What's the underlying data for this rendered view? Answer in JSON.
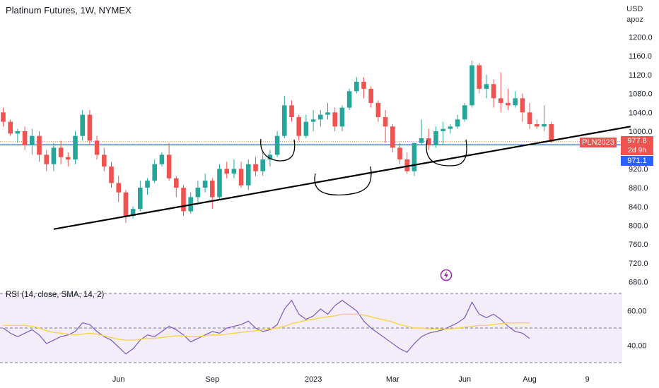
{
  "header": {
    "title": "Platinum Futures, 1W, NYMEX",
    "currency": "USD",
    "scale_mode": "apoz"
  },
  "badges": {
    "symbol": "PLN2023",
    "last_price": "977.8",
    "countdown": "2d 9h",
    "line_price": "971.1"
  },
  "rsi": {
    "title": "RSI (14, close, SMA, 14, 2)"
  },
  "colors": {
    "up": "#26a69a",
    "down": "#ef5350",
    "rsi_line": "#7e57c2",
    "rsi_ma": "#f5d547",
    "hline": "#2962ff",
    "rsi_band": "#ede7f6"
  },
  "icons": [
    "lightning-icon"
  ],
  "chart_data": [
    {
      "type": "candlestick",
      "title": "Platinum Futures, 1W, NYMEX",
      "y_unit": "USD",
      "ylim": [
        680,
        1220
      ],
      "y_ticks": [
        680,
        720,
        760,
        800,
        840,
        880,
        920,
        960,
        1000,
        1040,
        1080,
        1120,
        1160,
        1200
      ],
      "y_tick_labels": [
        "680.0",
        "720.0",
        "760.0",
        "800.0",
        "840.0",
        "880.0",
        "920.0",
        "",
        "1000.0",
        "1040.0",
        "1080.0",
        "1120.0",
        "1160.0",
        "1200.0"
      ],
      "x_labels": [
        "Jun",
        "Sep",
        "2023",
        "Mar",
        "Jun",
        "Aug",
        "9"
      ],
      "x_label_weeks": [
        0,
        13,
        27,
        38,
        48,
        57,
        65
      ],
      "week_offset": -16,
      "horizontal_line": 971.1,
      "candles": [
        [
          1040,
          1050,
          1010,
          1020
        ],
        [
          1020,
          1025,
          990,
          995
        ],
        [
          995,
          1005,
          975,
          1000
        ],
        [
          1000,
          1010,
          960,
          970
        ],
        [
          970,
          1005,
          950,
          990
        ],
        [
          990,
          1000,
          935,
          950
        ],
        [
          950,
          960,
          915,
          930
        ],
        [
          930,
          975,
          915,
          965
        ],
        [
          965,
          980,
          930,
          945
        ],
        [
          945,
          955,
          925,
          940
        ],
        [
          940,
          1000,
          930,
          990
        ],
        [
          990,
          1045,
          980,
          1035
        ],
        [
          1035,
          1045,
          970,
          980
        ],
        [
          980,
          990,
          940,
          950
        ],
        [
          950,
          965,
          915,
          925
        ],
        [
          925,
          935,
          880,
          890
        ],
        [
          890,
          905,
          850,
          870
        ],
        [
          870,
          875,
          805,
          820
        ],
        [
          820,
          840,
          815,
          835
        ],
        [
          835,
          895,
          830,
          880
        ],
        [
          880,
          900,
          865,
          895
        ],
        [
          895,
          940,
          890,
          930
        ],
        [
          930,
          955,
          925,
          950
        ],
        [
          950,
          975,
          895,
          900
        ],
        [
          900,
          905,
          860,
          880
        ],
        [
          880,
          885,
          820,
          830
        ],
        [
          830,
          870,
          825,
          860
        ],
        [
          860,
          895,
          850,
          880
        ],
        [
          880,
          910,
          870,
          895
        ],
        [
          895,
          900,
          835,
          860
        ],
        [
          860,
          930,
          855,
          920
        ],
        [
          920,
          935,
          900,
          910
        ],
        [
          910,
          940,
          900,
          920
        ],
        [
          920,
          935,
          880,
          885
        ],
        [
          885,
          940,
          875,
          930
        ],
        [
          930,
          945,
          905,
          915
        ],
        [
          915,
          955,
          905,
          940
        ],
        [
          940,
          960,
          925,
          950
        ],
        [
          950,
          1000,
          945,
          990
        ],
        [
          990,
          1075,
          985,
          1055
        ],
        [
          1055,
          1065,
          1020,
          1030
        ],
        [
          1030,
          1035,
          980,
          990
        ],
        [
          990,
          1035,
          985,
          1020
        ],
        [
          1020,
          1045,
          1000,
          1025
        ],
        [
          1025,
          1045,
          1010,
          1035
        ],
        [
          1035,
          1060,
          1025,
          1040
        ],
        [
          1040,
          1050,
          1000,
          1010
        ],
        [
          1010,
          1055,
          1000,
          1050
        ],
        [
          1050,
          1090,
          1045,
          1085
        ],
        [
          1085,
          1115,
          1080,
          1105
        ],
        [
          1105,
          1115,
          1070,
          1090
        ],
        [
          1090,
          1095,
          1050,
          1060
        ],
        [
          1060,
          1065,
          1020,
          1030
        ],
        [
          1030,
          1045,
          975,
          1010
        ],
        [
          1010,
          1015,
          955,
          965
        ],
        [
          965,
          975,
          930,
          940
        ],
        [
          940,
          955,
          910,
          915
        ],
        [
          915,
          975,
          905,
          975
        ],
        [
          975,
          1025,
          970,
          985
        ],
        [
          985,
          1005,
          960,
          970
        ],
        [
          970,
          1010,
          965,
          1000
        ],
        [
          1000,
          1020,
          970,
          1005
        ],
        [
          1005,
          1015,
          995,
          1010
        ],
        [
          1010,
          1035,
          1005,
          1025
        ],
        [
          1025,
          1060,
          1020,
          1055
        ],
        [
          1055,
          1150,
          1050,
          1140
        ],
        [
          1140,
          1145,
          1080,
          1090
        ],
        [
          1090,
          1120,
          1070,
          1100
        ],
        [
          1100,
          1110,
          1050,
          1070
        ],
        [
          1070,
          1125,
          1040,
          1060
        ],
        [
          1060,
          1090,
          1045,
          1055
        ],
        [
          1055,
          1085,
          1050,
          1070
        ],
        [
          1070,
          1080,
          1020,
          1040
        ],
        [
          1040,
          1060,
          1005,
          1015
        ],
        [
          1015,
          1025,
          1005,
          1010
        ],
        [
          1010,
          1055,
          1000,
          1015
        ],
        [
          1015,
          1020,
          975,
          978
        ]
      ],
      "annotations": [
        {
          "type": "trendline",
          "from": [
            -9,
            792
          ],
          "to": [
            71,
            1010
          ]
        }
      ]
    },
    {
      "type": "line",
      "title": "RSI (14, close, SMA, 14, 2)",
      "ylim": [
        28,
        72
      ],
      "y_ticks": [
        40,
        60
      ],
      "y_tick_labels": [
        "40.00",
        "60.00"
      ],
      "bands": [
        30,
        50,
        70
      ],
      "series": [
        {
          "name": "RSI",
          "values": [
            50,
            47,
            45,
            47,
            49,
            46,
            41,
            43,
            45,
            46,
            48,
            53,
            52,
            48,
            45,
            43,
            39,
            35,
            38,
            43,
            46,
            45,
            48,
            51,
            49,
            46,
            42,
            44,
            46,
            48,
            47,
            50,
            51,
            52,
            54,
            50,
            48,
            49,
            52,
            61,
            66,
            58,
            55,
            57,
            61,
            58,
            63,
            66,
            63,
            60,
            54,
            50,
            47,
            44,
            41,
            38,
            36,
            41,
            45,
            47,
            48,
            49,
            51,
            53,
            56,
            65,
            58,
            56,
            58,
            55,
            51,
            48,
            47,
            44
          ]
        },
        {
          "name": "SMA",
          "values": [
            51.5,
            51.5,
            51.5,
            51.5,
            51,
            50,
            48.5,
            47.5,
            47,
            46.5,
            46,
            46.5,
            47,
            46.5,
            45.5,
            44.5,
            43.5,
            43,
            43,
            43.5,
            44,
            44,
            44.5,
            45,
            45.5,
            45.5,
            45,
            45,
            45.5,
            46,
            46,
            46.5,
            47,
            47.5,
            48,
            48.5,
            49,
            49.5,
            50,
            51,
            52.5,
            53.5,
            54.5,
            55,
            56,
            56.5,
            57,
            58,
            58,
            58,
            57.5,
            56.5,
            55.5,
            54.5,
            53.5,
            52,
            51,
            50,
            50,
            49.5,
            49.5,
            49.5,
            49.5,
            50,
            50.5,
            51,
            51.5,
            51.5,
            52,
            52.5,
            53,
            53,
            53,
            53
          ]
        }
      ]
    }
  ]
}
